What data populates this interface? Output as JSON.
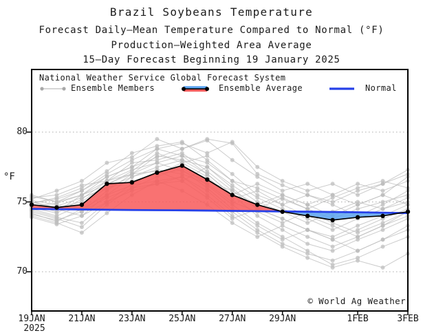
{
  "header": {
    "title": "Brazil Soybeans Temperature",
    "subtitle1": "Forecast Daily–Mean Temperature Compared to Normal (°F)",
    "subtitle2": "Production–Weighted Area Average",
    "subtitle3": "15–Day Forecast Beginning 19 January 2025"
  },
  "legend": {
    "system_label": "National Weather Service Global Forecast System",
    "items": [
      {
        "key": "members",
        "label": "Ensemble Members"
      },
      {
        "key": "average",
        "label": "Ensemble Average"
      },
      {
        "key": "normal",
        "label": "Normal"
      }
    ]
  },
  "axes": {
    "y_unit": "°F",
    "y_ticks": [
      80,
      75,
      70
    ],
    "x_ticks": [
      {
        "label": "19JAN",
        "day": 0
      },
      {
        "label": "21JAN",
        "day": 2
      },
      {
        "label": "23JAN",
        "day": 4
      },
      {
        "label": "25JAN",
        "day": 6
      },
      {
        "label": "27JAN",
        "day": 8
      },
      {
        "label": "29JAN",
        "day": 10
      },
      {
        "label": "1FEB",
        "day": 13
      },
      {
        "label": "3FEB",
        "day": 15
      }
    ],
    "x_year_label": "2025"
  },
  "watermark": "© World Ag Weather",
  "colors": {
    "above_normal_fill": "#f85b5b",
    "below_normal_fill": "#5ca4f0",
    "normal_line": "#2640e8",
    "average_line": "#000000",
    "member": "#bcbcbc",
    "grid": "#aaaaaa",
    "frame": "#000000"
  },
  "chart_data": {
    "type": "line",
    "title": "Brazil Soybeans Temperature",
    "ylabel": "°F",
    "ylim": [
      67.2,
      84.5
    ],
    "grid": "dotted horizontal at 70, 75, 80",
    "legend_position": "top-left inside plot",
    "x_dates": [
      "19JAN",
      "20JAN",
      "21JAN",
      "22JAN",
      "23JAN",
      "24JAN",
      "25JAN",
      "26JAN",
      "27JAN",
      "28JAN",
      "29JAN",
      "30JAN",
      "31JAN",
      "1FEB",
      "2FEB",
      "3FEB"
    ],
    "series": [
      {
        "name": "Ensemble Average",
        "values": [
          74.8,
          74.6,
          74.8,
          76.3,
          76.4,
          77.1,
          77.6,
          76.6,
          75.5,
          74.8,
          74.3,
          74.0,
          73.7,
          73.9,
          74.0,
          74.3
        ]
      },
      {
        "name": "Normal",
        "values": [
          74.5,
          74.48,
          74.46,
          74.44,
          74.42,
          74.41,
          74.4,
          74.38,
          74.36,
          74.34,
          74.32,
          74.3,
          74.28,
          74.26,
          74.23,
          74.2
        ]
      }
    ],
    "bands": {
      "above_normal": "red fill where Ensemble Average > Normal (20JAN–29JAN and near 3FEB)",
      "below_normal": "blue fill where Ensemble Average < Normal (29JAN–2FEB)"
    },
    "ensemble_members": [
      [
        75.2,
        75.8,
        76.5,
        77.8,
        78.2,
        79.5,
        78.8,
        79.5,
        79.2,
        77.0,
        76.2,
        75.5,
        75.0,
        75.8,
        76.3,
        77.3
      ],
      [
        74.9,
        75.3,
        76.0,
        77.2,
        78.5,
        79.0,
        79.3,
        78.0,
        76.5,
        76.0,
        75.2,
        74.5,
        75.3,
        76.0,
        76.5,
        76.0
      ],
      [
        75.4,
        75.0,
        75.8,
        76.8,
        77.5,
        78.2,
        78.8,
        79.4,
        78.0,
        76.8,
        75.8,
        76.3,
        75.5,
        74.8,
        75.5,
        76.8
      ],
      [
        74.6,
        74.2,
        75.2,
        76.5,
        77.0,
        77.8,
        77.2,
        76.5,
        75.8,
        74.5,
        73.8,
        73.0,
        72.5,
        73.3,
        74.0,
        74.8
      ],
      [
        75.0,
        74.5,
        74.0,
        75.5,
        76.8,
        77.5,
        78.0,
        77.0,
        75.5,
        74.0,
        73.0,
        72.0,
        71.5,
        72.3,
        73.0,
        73.8
      ],
      [
        74.3,
        73.8,
        73.2,
        74.8,
        76.0,
        76.8,
        77.5,
        76.2,
        74.8,
        73.5,
        72.5,
        71.5,
        70.5,
        71.0,
        71.8,
        72.5
      ],
      [
        74.0,
        73.5,
        72.8,
        74.2,
        75.5,
        76.5,
        76.8,
        75.5,
        74.0,
        72.8,
        71.8,
        71.0,
        70.3,
        70.8,
        70.3,
        71.3
      ],
      [
        74.8,
        74.3,
        75.5,
        76.2,
        77.2,
        78.5,
        77.8,
        76.8,
        75.2,
        75.8,
        74.8,
        74.0,
        73.3,
        72.5,
        73.3,
        74.3
      ],
      [
        75.1,
        74.8,
        74.3,
        75.8,
        77.0,
        77.2,
        76.5,
        77.5,
        76.2,
        75.0,
        74.3,
        73.5,
        74.3,
        75.0,
        74.5,
        75.3
      ],
      [
        74.5,
        74.0,
        74.8,
        76.0,
        76.5,
        77.0,
        77.8,
        78.3,
        77.0,
        75.5,
        74.8,
        75.5,
        74.8,
        74.0,
        74.8,
        75.8
      ],
      [
        75.3,
        75.5,
        76.2,
        76.5,
        77.8,
        78.0,
        78.5,
        77.2,
        75.8,
        74.8,
        75.5,
        74.8,
        74.0,
        74.8,
        75.5,
        74.8
      ],
      [
        74.2,
        73.6,
        74.5,
        75.5,
        76.2,
        76.5,
        75.8,
        74.8,
        73.5,
        72.5,
        73.3,
        72.5,
        71.8,
        72.5,
        73.3,
        74.0
      ],
      [
        74.7,
        74.9,
        75.5,
        76.8,
        77.5,
        78.8,
        79.2,
        78.5,
        79.3,
        77.5,
        76.5,
        75.8,
        76.3,
        75.5,
        76.3,
        77.0
      ],
      [
        75.0,
        74.6,
        75.0,
        76.3,
        77.0,
        78.3,
        78.0,
        77.5,
        76.0,
        74.5,
        75.3,
        74.5,
        73.8,
        74.5,
        75.0,
        75.5
      ],
      [
        74.4,
        73.9,
        73.5,
        75.0,
        76.3,
        77.0,
        77.3,
        76.0,
        74.5,
        73.3,
        72.3,
        73.0,
        72.3,
        71.5,
        72.3,
        73.0
      ],
      [
        74.9,
        75.2,
        75.8,
        77.0,
        78.0,
        78.8,
        78.3,
        77.0,
        75.5,
        76.3,
        75.5,
        74.8,
        75.5,
        76.3,
        75.8,
        76.5
      ],
      [
        74.1,
        73.7,
        74.3,
        75.3,
        76.0,
        76.3,
        76.8,
        75.8,
        74.3,
        73.0,
        72.0,
        71.3,
        70.8,
        71.5,
        72.3,
        73.3
      ],
      [
        75.5,
        75.0,
        75.5,
        76.5,
        77.3,
        77.8,
        78.3,
        77.8,
        76.5,
        75.3,
        74.5,
        73.8,
        73.0,
        73.8,
        74.5,
        75.0
      ],
      [
        74.4,
        74.7,
        75.3,
        76.0,
        76.8,
        77.3,
        77.0,
        76.3,
        75.0,
        74.3,
        73.5,
        74.3,
        73.5,
        72.8,
        73.5,
        74.3
      ],
      [
        73.9,
        73.4,
        74.0,
        75.0,
        75.8,
        76.3,
        76.5,
        75.3,
        73.8,
        74.5,
        73.8,
        73.0,
        72.3,
        73.0,
        73.8,
        74.5
      ]
    ]
  }
}
